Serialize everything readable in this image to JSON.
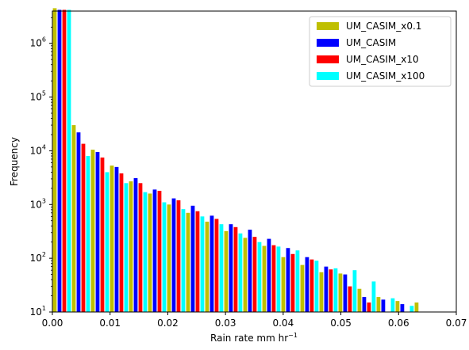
{
  "chart_data": {
    "type": "bar",
    "xlabel": "Rain rate mm hr",
    "xlabel_superscript": "−1",
    "ylabel": "Frequency",
    "y_scale": "log",
    "xlim": [
      0.0,
      0.07
    ],
    "ylim_log10": [
      1,
      6.6
    ],
    "x_ticks": [
      "0.00",
      "0.01",
      "0.02",
      "0.03",
      "0.04",
      "0.05",
      "0.06",
      "0.07"
    ],
    "x_tick_values": [
      0.0,
      0.01,
      0.02,
      0.03,
      0.04,
      0.05,
      0.06,
      0.07
    ],
    "y_ticks": [
      {
        "base": "10",
        "exp": "1",
        "value": 10
      },
      {
        "base": "10",
        "exp": "2",
        "value": 100
      },
      {
        "base": "10",
        "exp": "3",
        "value": 1000
      },
      {
        "base": "10",
        "exp": "4",
        "value": 10000
      },
      {
        "base": "10",
        "exp": "5",
        "value": 100000
      },
      {
        "base": "10",
        "exp": "6",
        "value": 1000000
      }
    ],
    "bin_edges": [
      0.0,
      0.0033,
      0.0066,
      0.0099,
      0.0132,
      0.0165,
      0.0198,
      0.0231,
      0.0264,
      0.0297,
      0.033,
      0.0363,
      0.0396,
      0.0429,
      0.0462,
      0.0495,
      0.0528,
      0.0561,
      0.0594,
      0.0627
    ],
    "series": [
      {
        "name": "UM_CASIM_x0.1",
        "color": "#bfbf00",
        "values": [
          4500000,
          30000,
          10500,
          5300,
          2700,
          1600,
          1000,
          700,
          480,
          320,
          240,
          170,
          105,
          75,
          55,
          52,
          27,
          19,
          16,
          15
        ]
      },
      {
        "name": "UM_CASIM",
        "color": "#0000ff",
        "values": [
          4200000,
          22000,
          9500,
          5000,
          3100,
          1900,
          1300,
          950,
          620,
          430,
          340,
          230,
          155,
          105,
          70,
          50,
          19,
          17,
          14,
          null
        ]
      },
      {
        "name": "UM_CASIM_x10",
        "color": "#ff0000",
        "values": [
          4200000,
          13500,
          7500,
          3800,
          2500,
          1800,
          1200,
          750,
          540,
          380,
          250,
          175,
          120,
          95,
          62,
          30,
          15,
          null,
          null,
          null
        ]
      },
      {
        "name": "UM_CASIM_x100",
        "color": "#00ffff",
        "values": [
          4200000,
          8000,
          4000,
          2500,
          1700,
          1100,
          820,
          600,
          430,
          290,
          200,
          165,
          140,
          90,
          65,
          60,
          37,
          18,
          13,
          null
        ]
      }
    ],
    "legend_position": "top-right",
    "grid": false
  }
}
